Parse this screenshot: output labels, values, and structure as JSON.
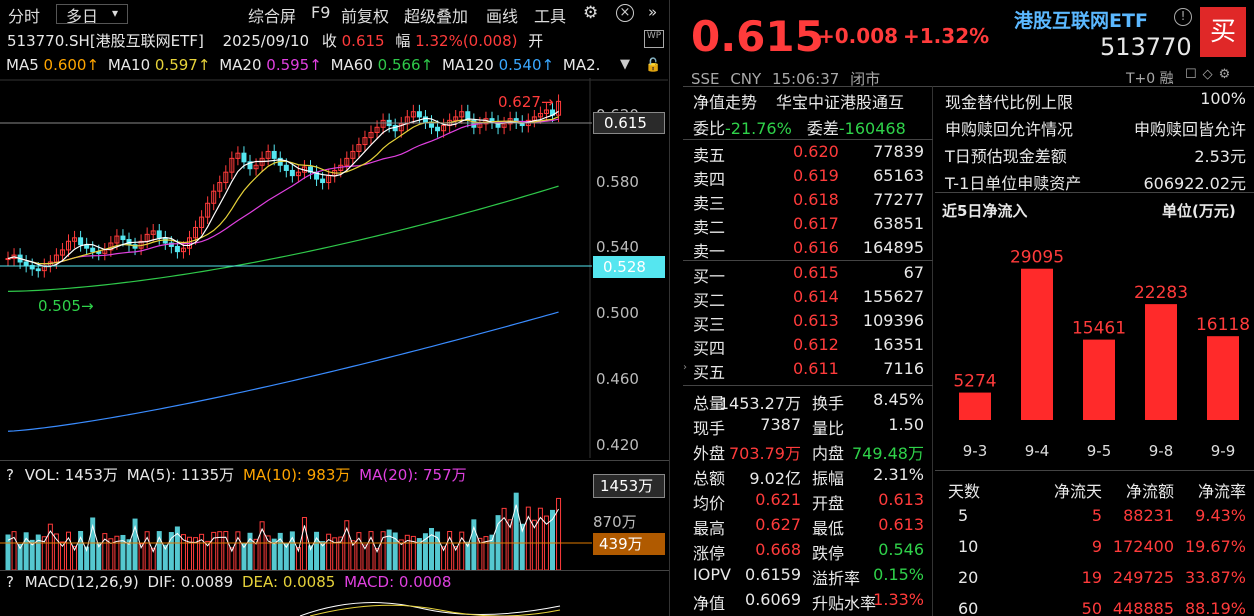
{
  "toolbar": {
    "btn_fenshi": "分时",
    "btn_duori": "多日",
    "btn_zonghe": "综合屏",
    "btn_f9": "F9",
    "btn_qianfuquan": "前复权",
    "btn_chaoji": "超级叠加",
    "btn_huaxian": "画线",
    "btn_gongju": "工具"
  },
  "info": {
    "code": "513770.SH[港股互联网ETF]",
    "date": "2025/09/10",
    "close_label": "收",
    "close": "0.615",
    "change_label": "幅",
    "change": "1.32%(0.008)",
    "open_label": "开"
  },
  "ma": {
    "ma5": "MA5",
    "ma5v": "0.600↑",
    "ma10": "MA10",
    "ma10v": "0.597↑",
    "ma20": "MA20",
    "ma20v": "0.595↑",
    "ma60": "MA60",
    "ma60v": "0.566↑",
    "ma120": "MA120",
    "ma120v": "0.540↑",
    "ma2": "MA2."
  },
  "price_axis": {
    "ticks": [
      "0.620",
      "0.580",
      "0.540",
      "0.500",
      "0.460",
      "0.420"
    ],
    "current": "0.615",
    "line": "0.528",
    "high_mark": "0.627",
    "low_mark": "0.505"
  },
  "vol": {
    "title": "VOL: 1453万",
    "ma5": "MA(5): 1135万",
    "ma10": "MA(10): 983万",
    "ma20": "MA(20): 757万",
    "tag_top": "1453万",
    "tick_mid": "870万",
    "tag_line": "439万",
    "q": "?"
  },
  "macd": {
    "title": "MACD(12,26,9)",
    "dif": "DIF: 0.0089",
    "dea": "DEA: 0.0085",
    "macd": "MACD: 0.0008",
    "q": "?"
  },
  "quote": {
    "price": "0.615",
    "chg": "+0.008",
    "pct": "+1.32%",
    "name": "港股互联网ETF",
    "code": "513770",
    "buy": "买",
    "exch": "SSE",
    "cur": "CNY",
    "time": "15:06:37",
    "status": "闭市",
    "t0": "T+0",
    "rong": "融"
  },
  "tabs": {
    "nav": "净值走势",
    "index": "华宝中证港股通互"
  },
  "weibi": {
    "l1": "委比",
    "v1": "-21.76%",
    "l2": "委差",
    "v2": "-160468"
  },
  "asks": [
    {
      "l": "卖五",
      "p": "0.620",
      "v": "77839"
    },
    {
      "l": "卖四",
      "p": "0.619",
      "v": "65163"
    },
    {
      "l": "卖三",
      "p": "0.618",
      "v": "77277"
    },
    {
      "l": "卖二",
      "p": "0.617",
      "v": "63851"
    },
    {
      "l": "卖一",
      "p": "0.616",
      "v": "164895"
    }
  ],
  "bids": [
    {
      "l": "买一",
      "p": "0.615",
      "v": "67"
    },
    {
      "l": "买二",
      "p": "0.614",
      "v": "155627"
    },
    {
      "l": "买三",
      "p": "0.613",
      "v": "109396"
    },
    {
      "l": "买四",
      "p": "0.612",
      "v": "16351"
    },
    {
      "l": "买五",
      "p": "0.611",
      "v": "7116"
    }
  ],
  "stats": [
    {
      "l1": "总量",
      "v1": "1453.27万",
      "l2": "换手",
      "v2": "8.45%"
    },
    {
      "l1": "现手",
      "v1": "7387",
      "l2": "量比",
      "v2": "1.50"
    },
    {
      "l1": "外盘",
      "v1": "703.79万",
      "l2": "内盘",
      "v2": "749.48万"
    },
    {
      "l1": "总额",
      "v1": "9.02亿",
      "l2": "振幅",
      "v2": "2.31%"
    },
    {
      "l1": "均价",
      "v1": "0.621",
      "l2": "开盘",
      "v2": "0.613"
    },
    {
      "l1": "最高",
      "v1": "0.627",
      "l2": "最低",
      "v2": "0.613"
    },
    {
      "l1": "涨停",
      "v1": "0.668",
      "l2": "跌停",
      "v2": "0.546"
    },
    {
      "l1": "IOPV",
      "v1": "0.6159",
      "l2": "溢折率",
      "v2": "0.15%"
    },
    {
      "l1": "净值",
      "v1": "0.6069",
      "l2": "升贴水率",
      "v2": "1.33%"
    }
  ],
  "etf_info": [
    {
      "l": "现金替代比例上限",
      "v": "100%"
    },
    {
      "l": "申购赎回允许情况",
      "v": "申购赎回皆允许"
    },
    {
      "l": "T日预估现金差额",
      "v": "2.53元"
    },
    {
      "l": "T-1日单位申赎资产",
      "v": "606922.02元"
    }
  ],
  "flow": {
    "title": "近5日净流入",
    "unit": "单位(万元)"
  },
  "chart_data": {
    "type": "bar",
    "categories": [
      "9-3",
      "9-4",
      "9-5",
      "9-8",
      "9-9"
    ],
    "values": [
      5274,
      29095,
      15461,
      22283,
      16118
    ],
    "title": "近5日净流入",
    "ylabel": "单位(万元)",
    "ylim": [
      0,
      30000
    ]
  },
  "flow_table": {
    "headers": [
      "天数",
      "净流天",
      "净流额",
      "净流率"
    ],
    "rows": [
      [
        "5",
        "5",
        "88231",
        "9.43%"
      ],
      [
        "10",
        "9",
        "172400",
        "19.67%"
      ],
      [
        "20",
        "19",
        "249725",
        "33.87%"
      ],
      [
        "60",
        "50",
        "448885",
        "88.19%"
      ]
    ]
  },
  "colors": {
    "up": "#ff3b3b",
    "down": "#2fd24a",
    "ma5": "#ffffff",
    "ma10": "#e6d23a",
    "ma20": "#e040e0",
    "ma60": "#2fc84a",
    "ma120": "#3aa8ff",
    "tag": "#55e6f0"
  }
}
